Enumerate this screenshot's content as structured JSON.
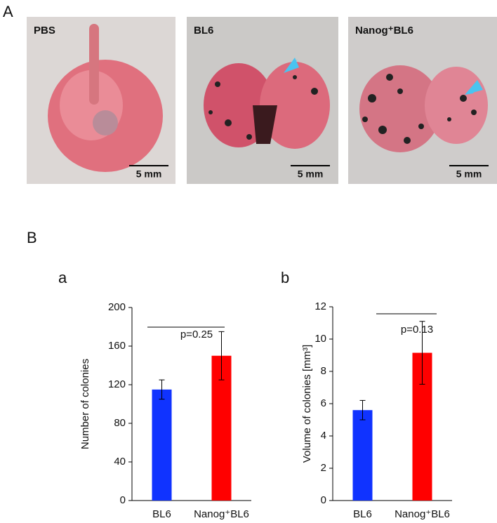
{
  "panel_a": {
    "label": "A",
    "photos": [
      {
        "label": "PBS",
        "scale_bar": "5 mm"
      },
      {
        "label": "BL6",
        "scale_bar": "5 mm"
      },
      {
        "label": "Nanog⁺BL6",
        "scale_bar": "5 mm"
      }
    ]
  },
  "panel_b": {
    "label": "B"
  },
  "chart_data": [
    {
      "type": "bar",
      "panel": "a",
      "ylabel": "Number of colonies",
      "categories": [
        "BL6",
        "Nanog⁺BL6"
      ],
      "values": [
        115,
        150
      ],
      "errors": [
        10,
        25
      ],
      "colors": [
        "#1033ff",
        "#ff0000"
      ],
      "annotation": "p=0.25",
      "ylim": [
        0,
        200
      ],
      "yticks": [
        0,
        40,
        80,
        120,
        160,
        200
      ],
      "grid": false
    },
    {
      "type": "bar",
      "panel": "b",
      "ylabel": "Volume of colonies [mm³]",
      "categories": [
        "BL6",
        "Nanog⁺BL6"
      ],
      "values": [
        5.6,
        9.15
      ],
      "errors": [
        0.6,
        1.95
      ],
      "colors": [
        "#1033ff",
        "#ff0000"
      ],
      "annotation": "p=0.13",
      "ylim": [
        0,
        12
      ],
      "yticks": [
        0,
        2,
        4,
        6,
        8,
        10,
        12
      ],
      "grid": false
    }
  ]
}
